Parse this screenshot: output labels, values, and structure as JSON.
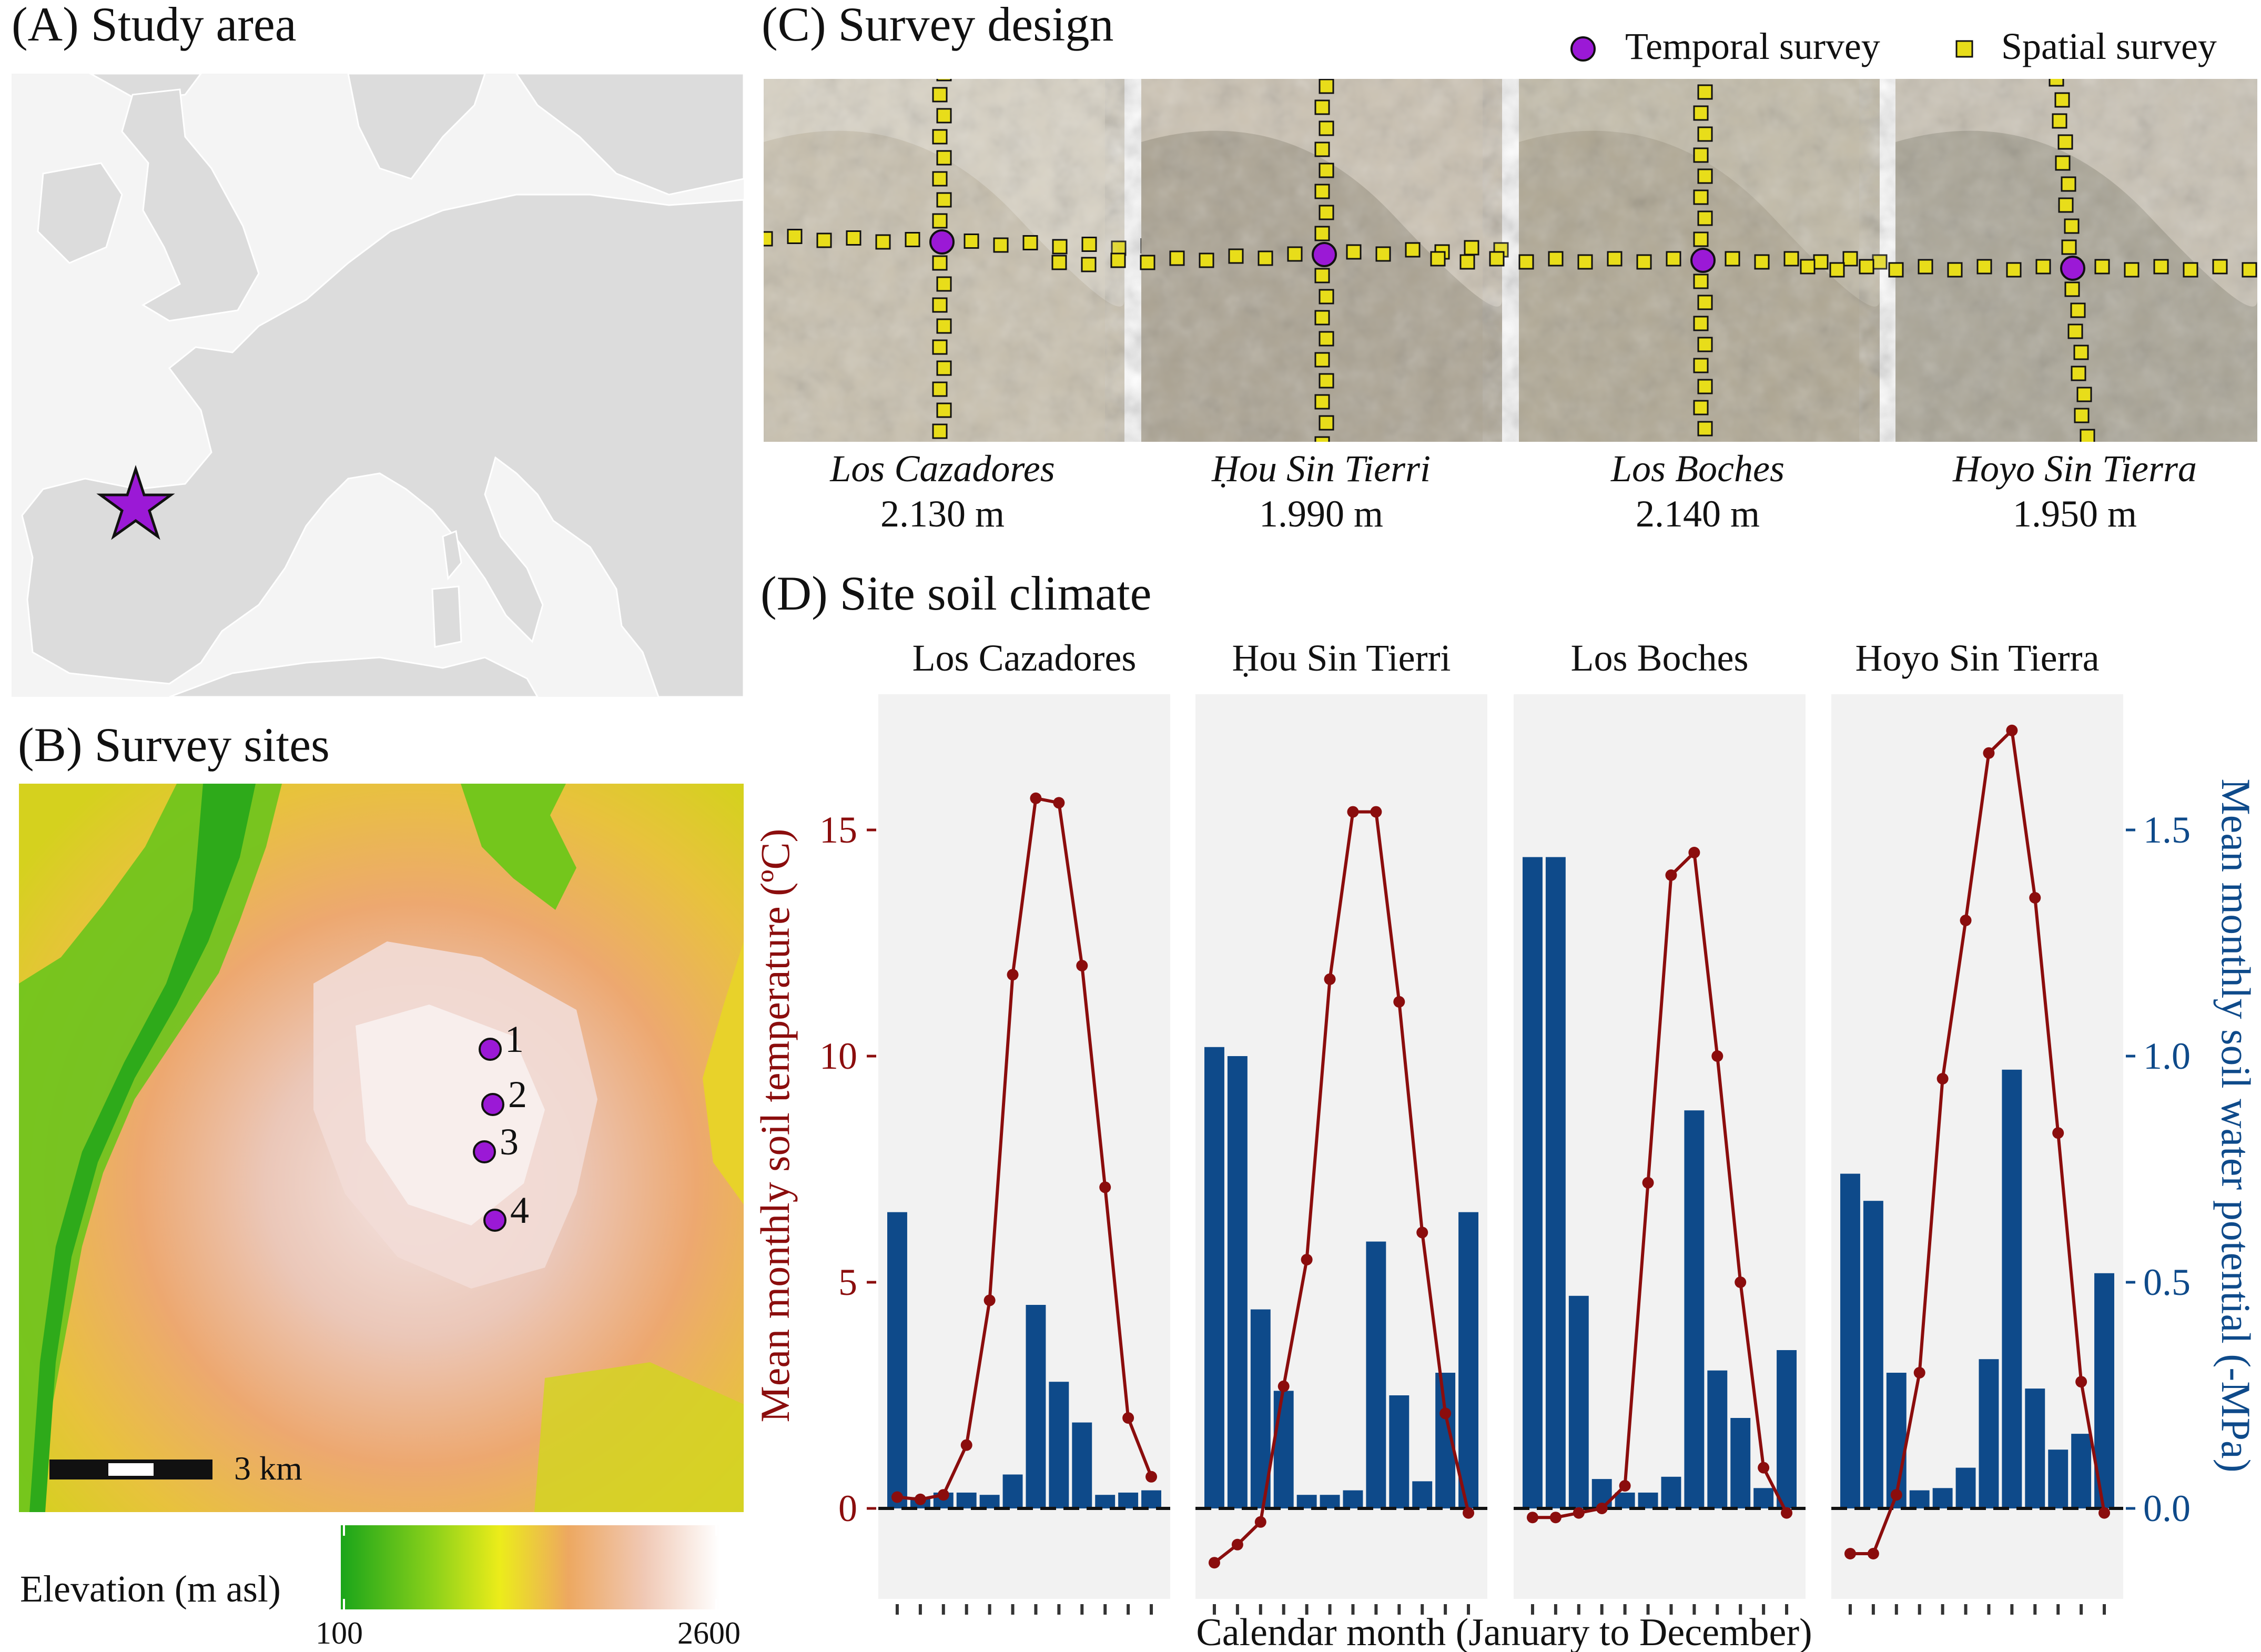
{
  "panels": {
    "a": {
      "title": "(A) Study area"
    },
    "b": {
      "title": "(B) Survey sites",
      "scale_label": "3 km",
      "legend_title": "Elevation (m asl)",
      "legend_min": "100",
      "legend_max": "2600",
      "site_labels": [
        "1",
        "2",
        "3",
        "4"
      ]
    },
    "c": {
      "title": "(C) Survey design",
      "legend": {
        "temporal": "Temporal survey",
        "spatial": "Spatial survey"
      },
      "sites": [
        {
          "name": "Los Cazadores",
          "elevation": "2.130 m"
        },
        {
          "name": "Ḥou Sin Tierri",
          "elevation": "1.990 m"
        },
        {
          "name": "Los Boches",
          "elevation": "2.140 m"
        },
        {
          "name": "Hoyo Sin Tierra",
          "elevation": "1.950 m"
        }
      ]
    },
    "d": {
      "title": "(D) Site soil climate"
    }
  },
  "colors": {
    "temperature": "#8b0d0d",
    "water": "#0e4a8a",
    "site_marker": "#9b19d6",
    "spatial_marker": "#e8dd1a",
    "facet_bg": "#f2f2f2"
  },
  "chart_data": {
    "type": "bar+line",
    "xlabel": "Calendar month (January to December)",
    "ylabel_left": "Mean monthly soil temperature (ºC)",
    "ylabel_right": "Mean monthly soil water potential (-MPa)",
    "yticks_left": [
      "0",
      "5",
      "10",
      "15"
    ],
    "yticks_right": [
      "0.0",
      "0.5",
      "1.0",
      "1.5"
    ],
    "ylim_left": [
      -2,
      18
    ],
    "ylim_right": [
      -0.2,
      1.8
    ],
    "months": [
      1,
      2,
      3,
      4,
      5,
      6,
      7,
      8,
      9,
      10,
      11,
      12
    ],
    "facets": [
      {
        "name": "Los Cazadores",
        "temperature": [
          0.25,
          0.2,
          0.3,
          1.4,
          4.6,
          11.8,
          15.7,
          15.6,
          12.0,
          7.1,
          2.0,
          0.7
        ],
        "water_potential": [
          0.655,
          0.025,
          0.035,
          0.035,
          0.03,
          0.075,
          0.45,
          0.28,
          0.19,
          0.03,
          0.035,
          0.04
        ]
      },
      {
        "name": "Ḥou Sin Tierri",
        "temperature": [
          -1.2,
          -0.8,
          -0.3,
          2.7,
          5.5,
          11.7,
          15.4,
          15.4,
          11.2,
          6.1,
          2.1,
          -0.1
        ],
        "water_potential": [
          1.02,
          1.0,
          0.44,
          0.26,
          0.03,
          0.03,
          0.04,
          0.59,
          0.25,
          0.06,
          0.3,
          0.655
        ]
      },
      {
        "name": "Los Boches",
        "temperature": [
          -0.2,
          -0.2,
          -0.1,
          0.0,
          0.5,
          7.2,
          14.0,
          14.5,
          10.0,
          5.0,
          0.9,
          -0.1
        ],
        "water_potential": [
          1.44,
          1.44,
          0.47,
          0.065,
          0.035,
          0.035,
          0.07,
          0.88,
          0.305,
          0.2,
          0.045,
          0.35
        ]
      },
      {
        "name": "Hoyo Sin Tierra",
        "temperature": [
          -1.0,
          -1.0,
          0.3,
          3.0,
          9.5,
          13.0,
          16.7,
          17.2,
          13.5,
          8.3,
          2.8,
          -0.1
        ],
        "water_potential": [
          0.74,
          0.68,
          0.3,
          0.04,
          0.045,
          0.09,
          0.33,
          0.97,
          0.265,
          0.13,
          0.165,
          0.52
        ]
      }
    ]
  }
}
